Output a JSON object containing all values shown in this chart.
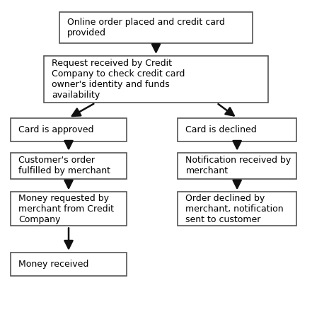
{
  "background_color": "#ffffff",
  "box_edge_color": "#555555",
  "box_fill_color": "#ffffff",
  "text_color": "#000000",
  "arrow_color": "#111111",
  "font_size": 9,
  "boxes": {
    "top": [
      0.5,
      0.915,
      0.62,
      0.095,
      "Online order placed and credit card\nprovided"
    ],
    "mid": [
      0.5,
      0.755,
      0.72,
      0.145,
      "Request received by Credit\nCompany to check credit card\nowner's identity and funds\navailability"
    ],
    "left1": [
      0.22,
      0.6,
      0.37,
      0.072,
      "Card is approved"
    ],
    "right1": [
      0.76,
      0.6,
      0.38,
      0.072,
      "Card is declined"
    ],
    "left2": [
      0.22,
      0.488,
      0.37,
      0.082,
      "Customer's order\nfulfilled by merchant"
    ],
    "right2": [
      0.76,
      0.488,
      0.38,
      0.082,
      "Notification received by\nmerchant"
    ],
    "left3": [
      0.22,
      0.355,
      0.37,
      0.105,
      "Money requested by\nmerchant from Credit\nCompany"
    ],
    "right3": [
      0.76,
      0.355,
      0.38,
      0.105,
      "Order declined by\nmerchant, notification\nsent to customer"
    ],
    "left4": [
      0.22,
      0.185,
      0.37,
      0.072,
      "Money received"
    ]
  }
}
